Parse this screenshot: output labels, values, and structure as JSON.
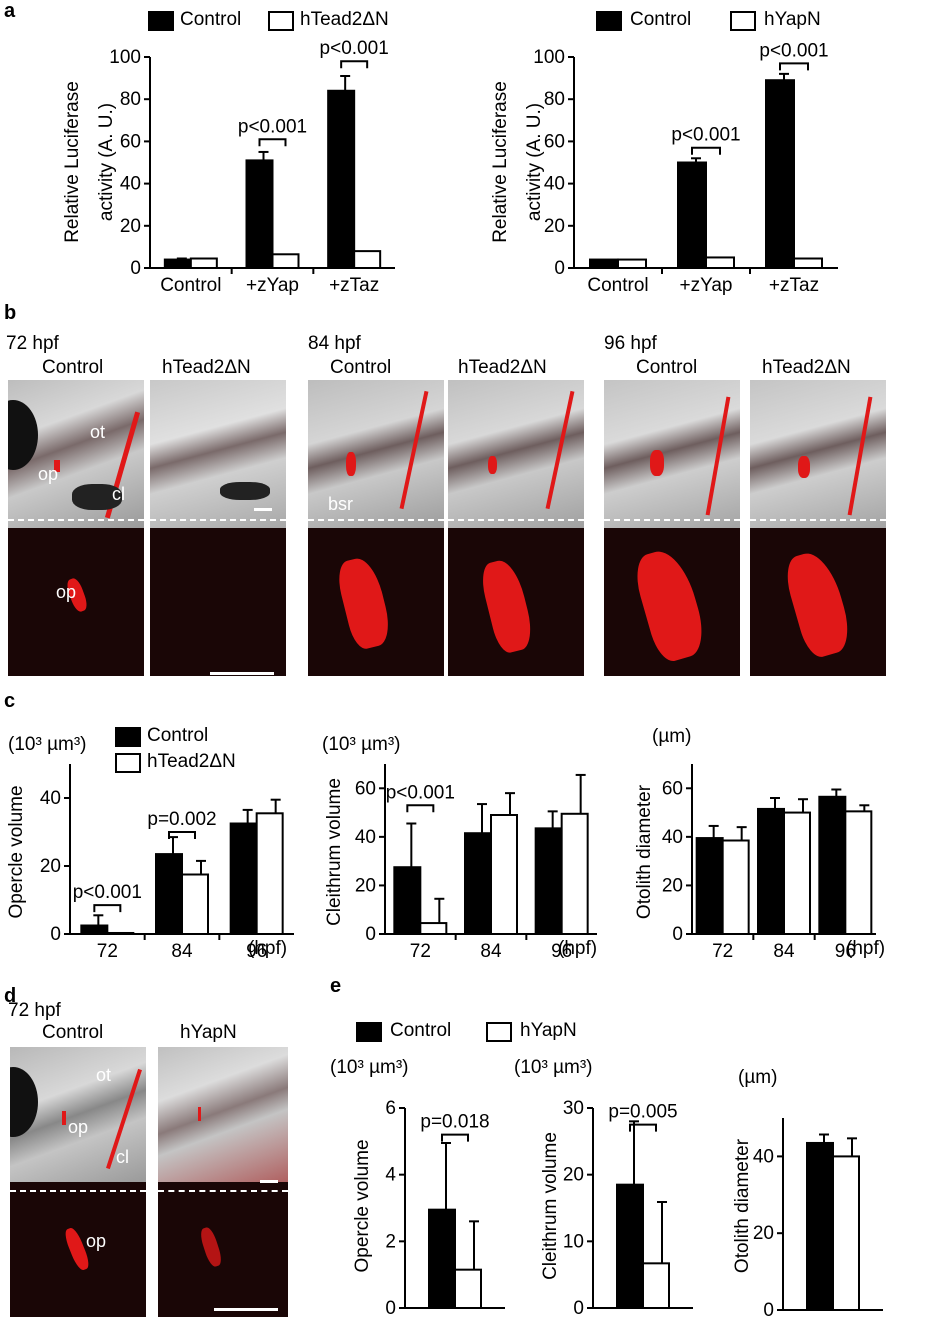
{
  "panel_labels": {
    "a": "a",
    "b": "b",
    "c": "c",
    "d": "d",
    "e": "e"
  },
  "legend_a1": {
    "control": "Control",
    "treated": "hTead2ΔN"
  },
  "legend_a2": {
    "control": "Control",
    "treated": "hYapN"
  },
  "legend_c": {
    "control": "Control",
    "treated": "hTead2ΔN"
  },
  "legend_e": {
    "control": "Control",
    "treated": "hYapN"
  },
  "panel_b": {
    "timepoints": [
      "72 hpf",
      "84 hpf",
      "96 hpf"
    ],
    "col_labels": [
      "Control",
      "hTead2ΔN",
      "Control",
      "hTead2ΔN",
      "Control",
      "hTead2ΔN"
    ],
    "labels": {
      "ot": "ot",
      "op_top": "op",
      "cl": "cl",
      "op_bot": "op",
      "bsr": "bsr"
    }
  },
  "panel_d": {
    "timepoint": "72 hpf",
    "col_labels": [
      "Control",
      "hYapN"
    ],
    "labels": {
      "ot": "ot",
      "op_top": "op",
      "cl": "cl",
      "op_bot": "op"
    }
  },
  "colors": {
    "control": "#000000",
    "treated": "#ffffff",
    "signal": "#e01818"
  },
  "chart_data": [
    {
      "id": "a1",
      "type": "bar",
      "ylabel": "Relative Luciferase\nactivity (A. U.)",
      "xlabel": "",
      "ylim": [
        0,
        100
      ],
      "yticks": [
        0,
        20,
        40,
        60,
        80,
        100
      ],
      "categories": [
        "Control",
        "+zYap",
        "+zTaz"
      ],
      "series": [
        {
          "name": "Control",
          "values": [
            4,
            51,
            84
          ],
          "errors": [
            0.5,
            4,
            7
          ]
        },
        {
          "name": "hTead2ΔN",
          "values": [
            4.5,
            6.5,
            8
          ],
          "errors": [
            0,
            0,
            0
          ]
        }
      ],
      "annotations": [
        {
          "text": "p<0.001",
          "category": 1,
          "y": 61
        },
        {
          "text": "p<0.001",
          "category": 2,
          "y": 98
        }
      ]
    },
    {
      "id": "a2",
      "type": "bar",
      "ylabel": "Relative Luciferase\nactivity (A. U.)",
      "xlabel": "",
      "ylim": [
        0,
        100
      ],
      "yticks": [
        0,
        20,
        40,
        60,
        80,
        100
      ],
      "categories": [
        "Control",
        "+zYap",
        "+zTaz"
      ],
      "series": [
        {
          "name": "Control",
          "values": [
            4,
            50,
            89
          ],
          "errors": [
            0,
            2,
            3
          ]
        },
        {
          "name": "hYapN",
          "values": [
            4,
            5,
            4.5
          ],
          "errors": [
            0,
            0,
            0
          ]
        }
      ],
      "annotations": [
        {
          "text": "p<0.001",
          "category": 1,
          "y": 57
        },
        {
          "text": "p<0.001",
          "category": 2,
          "y": 97
        }
      ]
    },
    {
      "id": "c1",
      "type": "bar",
      "unit": "(10³ µm³)",
      "ylabel": "Opercle volume",
      "xlabel": "(hpf)",
      "ylim": [
        0,
        50
      ],
      "yticks": [
        0,
        20,
        40
      ],
      "categories": [
        "72",
        "84",
        "96"
      ],
      "series": [
        {
          "name": "Control",
          "values": [
            2.5,
            23.5,
            32.5
          ],
          "errors": [
            3,
            5,
            4
          ]
        },
        {
          "name": "hTead2ΔN",
          "values": [
            0.3,
            17.5,
            35.5
          ],
          "errors": [
            0,
            4,
            4
          ]
        }
      ],
      "annotations": [
        {
          "text": "p<0.001",
          "category": 0,
          "y": 8.5
        },
        {
          "text": "p=0.002",
          "category": 1,
          "y": 30
        }
      ]
    },
    {
      "id": "c2",
      "type": "bar",
      "unit": "(10³ µm³)",
      "ylabel": "Cleithrum volume",
      "xlabel": "(hpf)",
      "ylim": [
        0,
        70
      ],
      "yticks": [
        0,
        20,
        40,
        60
      ],
      "categories": [
        "72",
        "84",
        "96"
      ],
      "series": [
        {
          "name": "Control",
          "values": [
            27.5,
            41.5,
            43.5
          ],
          "errors": [
            18,
            12,
            7
          ]
        },
        {
          "name": "hTead2ΔN",
          "values": [
            4.5,
            49,
            49.5
          ],
          "errors": [
            10,
            9,
            16
          ]
        }
      ],
      "annotations": [
        {
          "text": "p<0.001",
          "category": 0,
          "y": 53
        }
      ]
    },
    {
      "id": "c3",
      "type": "bar",
      "unit": "(µm)",
      "ylabel": "Otolith diameter",
      "xlabel": "(hpf)",
      "ylim": [
        0,
        70
      ],
      "yticks": [
        0,
        20,
        40,
        60
      ],
      "categories": [
        "72",
        "84",
        "96"
      ],
      "series": [
        {
          "name": "Control",
          "values": [
            39.5,
            51.5,
            56.5
          ],
          "errors": [
            5,
            4.5,
            3
          ]
        },
        {
          "name": "hTead2ΔN",
          "values": [
            38.5,
            50,
            50.5
          ],
          "errors": [
            5.5,
            5.5,
            2.5
          ]
        }
      ],
      "annotations": []
    },
    {
      "id": "e1",
      "type": "bar",
      "unit": "(10³ µm³)",
      "ylabel": "Opercle volume",
      "xlabel": "",
      "ylim": [
        0,
        6
      ],
      "yticks": [
        0,
        2,
        4,
        6
      ],
      "categories": [
        ""
      ],
      "series": [
        {
          "name": "Control",
          "values": [
            2.95
          ],
          "errors": [
            2.0
          ]
        },
        {
          "name": "hYapN",
          "values": [
            1.15
          ],
          "errors": [
            1.45
          ]
        }
      ],
      "annotations": [
        {
          "text": "p=0.018",
          "category": 0,
          "y": 5.2
        }
      ]
    },
    {
      "id": "e2",
      "type": "bar",
      "unit": "(10³ µm³)",
      "ylabel": "Cleithrum volume",
      "xlabel": "",
      "ylim": [
        0,
        30
      ],
      "yticks": [
        0,
        10,
        20,
        30
      ],
      "categories": [
        ""
      ],
      "series": [
        {
          "name": "Control",
          "values": [
            18.5
          ],
          "errors": [
            9.5
          ]
        },
        {
          "name": "hYapN",
          "values": [
            6.7
          ],
          "errors": [
            9.2
          ]
        }
      ],
      "annotations": [
        {
          "text": "p=0.005",
          "category": 0,
          "y": 27.5
        }
      ]
    },
    {
      "id": "e3",
      "type": "bar",
      "unit": "(µm)",
      "ylabel": "Otolith diameter",
      "xlabel": "",
      "ylim": [
        0,
        50
      ],
      "yticks": [
        0,
        20,
        40
      ],
      "categories": [
        ""
      ],
      "series": [
        {
          "name": "Control",
          "values": [
            43.5
          ],
          "errors": [
            2.2
          ]
        },
        {
          "name": "hYapN",
          "values": [
            40
          ],
          "errors": [
            4.7
          ]
        }
      ],
      "annotations": []
    }
  ]
}
